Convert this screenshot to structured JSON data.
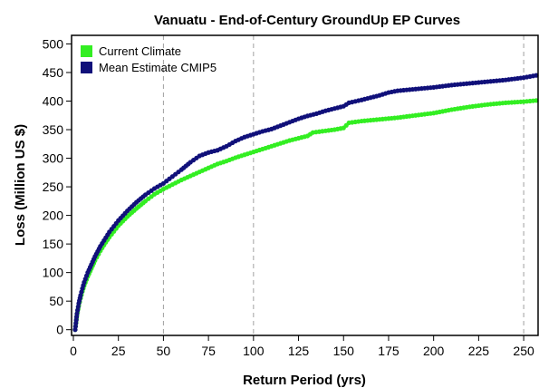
{
  "chart_data": {
    "type": "scatter",
    "title": "Vanuatu - End-of-Century GroundUp EP Curves",
    "xlabel": "Return Period (yrs)",
    "ylabel": "Loss (Million US $)",
    "xlim": [
      -1,
      258
    ],
    "ylim": [
      -10,
      515
    ],
    "x_ticks": [
      0,
      25,
      50,
      75,
      100,
      125,
      150,
      175,
      200,
      225,
      250
    ],
    "y_ticks": [
      0,
      50,
      100,
      150,
      200,
      250,
      300,
      350,
      400,
      450,
      500
    ],
    "vertical_reference_lines": [
      50,
      100,
      250
    ],
    "legend_position": "top-left",
    "series": [
      {
        "name": "Current Climate",
        "color": "#33ee22",
        "points": [
          [
            1,
            0
          ],
          [
            2,
            25
          ],
          [
            3,
            42
          ],
          [
            4,
            55
          ],
          [
            5,
            67
          ],
          [
            6,
            77
          ],
          [
            8,
            93
          ],
          [
            10,
            107
          ],
          [
            12,
            121
          ],
          [
            15,
            138
          ],
          [
            18,
            153
          ],
          [
            20,
            162
          ],
          [
            25,
            182
          ],
          [
            30,
            198
          ],
          [
            35,
            212
          ],
          [
            40,
            225
          ],
          [
            45,
            237
          ],
          [
            50,
            246
          ],
          [
            55,
            254
          ],
          [
            60,
            262
          ],
          [
            65,
            269
          ],
          [
            70,
            276
          ],
          [
            75,
            283
          ],
          [
            80,
            290
          ],
          [
            85,
            295
          ],
          [
            90,
            301
          ],
          [
            95,
            306
          ],
          [
            100,
            311
          ],
          [
            105,
            316
          ],
          [
            110,
            321
          ],
          [
            115,
            326
          ],
          [
            120,
            331
          ],
          [
            125,
            335
          ],
          [
            130,
            339
          ],
          [
            133,
            345
          ],
          [
            140,
            348
          ],
          [
            145,
            350
          ],
          [
            150,
            353
          ],
          [
            153,
            362
          ],
          [
            160,
            365
          ],
          [
            170,
            368
          ],
          [
            180,
            371
          ],
          [
            190,
            375
          ],
          [
            200,
            379
          ],
          [
            210,
            385
          ],
          [
            220,
            390
          ],
          [
            230,
            394
          ],
          [
            240,
            397
          ],
          [
            250,
            399
          ],
          [
            257,
            401
          ]
        ]
      },
      {
        "name": "Mean Estimate CMIP5",
        "color": "#10107a",
        "points": [
          [
            1,
            0
          ],
          [
            2,
            28
          ],
          [
            3,
            46
          ],
          [
            4,
            60
          ],
          [
            5,
            72
          ],
          [
            6,
            83
          ],
          [
            8,
            100
          ],
          [
            10,
            114
          ],
          [
            12,
            128
          ],
          [
            15,
            146
          ],
          [
            18,
            161
          ],
          [
            20,
            171
          ],
          [
            25,
            191
          ],
          [
            30,
            208
          ],
          [
            35,
            223
          ],
          [
            40,
            236
          ],
          [
            45,
            247
          ],
          [
            50,
            256
          ],
          [
            55,
            268
          ],
          [
            60,
            280
          ],
          [
            65,
            293
          ],
          [
            70,
            304
          ],
          [
            75,
            310
          ],
          [
            80,
            314
          ],
          [
            85,
            321
          ],
          [
            90,
            330
          ],
          [
            95,
            337
          ],
          [
            100,
            342
          ],
          [
            105,
            347
          ],
          [
            110,
            351
          ],
          [
            115,
            357
          ],
          [
            120,
            363
          ],
          [
            125,
            369
          ],
          [
            130,
            374
          ],
          [
            135,
            378
          ],
          [
            140,
            383
          ],
          [
            145,
            387
          ],
          [
            150,
            391
          ],
          [
            153,
            397
          ],
          [
            160,
            402
          ],
          [
            170,
            410
          ],
          [
            175,
            415
          ],
          [
            180,
            418
          ],
          [
            190,
            421
          ],
          [
            200,
            424
          ],
          [
            210,
            428
          ],
          [
            220,
            431
          ],
          [
            230,
            434
          ],
          [
            240,
            437
          ],
          [
            250,
            441
          ],
          [
            257,
            445
          ]
        ]
      }
    ]
  }
}
